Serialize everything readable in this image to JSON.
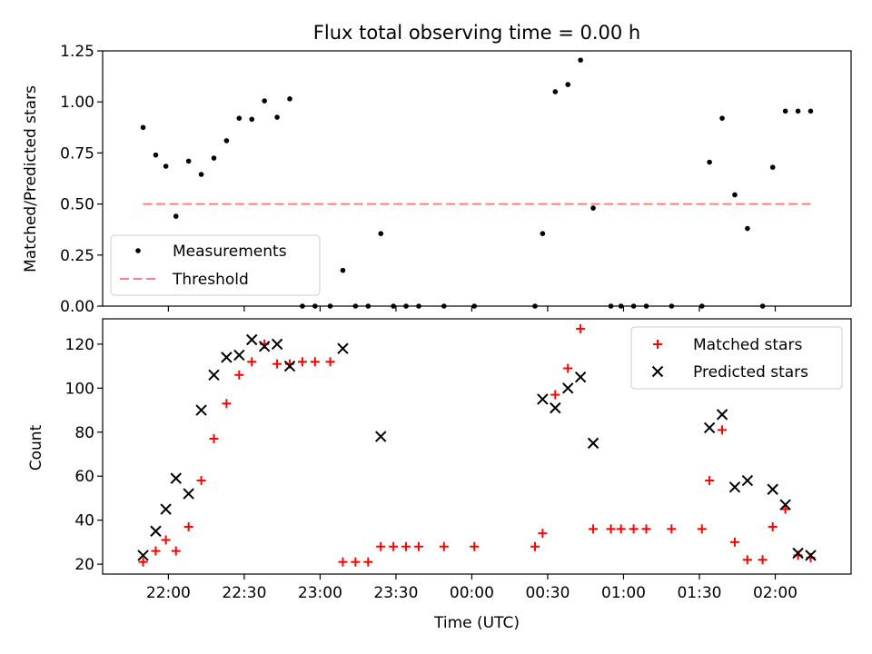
{
  "chart_data": [
    {
      "type": "scatter",
      "title": "Flux total observing time = 0.00 h",
      "xlabel": "",
      "ylabel": "Matched/Predicted stars",
      "ylim": [
        0,
        1.25
      ],
      "yticks": [
        "0.00",
        "0.25",
        "0.50",
        "0.75",
        "1.00",
        "1.25"
      ],
      "legend_position": "lower-left",
      "series": [
        {
          "name": "Measurements",
          "color": "#000000",
          "marker": "dot",
          "points": [
            [
              "21:50",
              0.875
            ],
            [
              "21:55",
              0.74
            ],
            [
              "21:59",
              0.685
            ],
            [
              "22:03",
              0.44
            ],
            [
              "22:08",
              0.71
            ],
            [
              "22:13",
              0.645
            ],
            [
              "22:18",
              0.725
            ],
            [
              "22:23",
              0.81
            ],
            [
              "22:28",
              0.92
            ],
            [
              "22:33",
              0.915
            ],
            [
              "22:38",
              1.005
            ],
            [
              "22:43",
              0.925
            ],
            [
              "22:48",
              1.015
            ],
            [
              "22:53",
              0.0
            ],
            [
              "22:58",
              0.0
            ],
            [
              "23:04",
              0.0
            ],
            [
              "23:09",
              0.175
            ],
            [
              "23:14",
              0.0
            ],
            [
              "23:19",
              0.0
            ],
            [
              "23:24",
              0.355
            ],
            [
              "23:29",
              0.0
            ],
            [
              "23:34",
              0.0
            ],
            [
              "23:39",
              0.0
            ],
            [
              "23:49",
              0.0
            ],
            [
              "24:01",
              0.0
            ],
            [
              "24:25",
              0.0
            ],
            [
              "24:28",
              0.355
            ],
            [
              "24:33",
              1.05
            ],
            [
              "24:38",
              1.085
            ],
            [
              "24:43",
              1.205
            ],
            [
              "24:48",
              0.48
            ],
            [
              "24:55",
              0.0
            ],
            [
              "24:59",
              0.0
            ],
            [
              "25:04",
              0.0
            ],
            [
              "25:09",
              0.0
            ],
            [
              "25:19",
              0.0
            ],
            [
              "25:31",
              0.0
            ],
            [
              "25:34",
              0.705
            ],
            [
              "25:39",
              0.92
            ],
            [
              "25:44",
              0.545
            ],
            [
              "25:49",
              0.38
            ],
            [
              "25:55",
              0.0
            ],
            [
              "25:59",
              0.68
            ],
            [
              "26:04",
              0.955
            ],
            [
              "26:09",
              0.955
            ],
            [
              "26:14",
              0.955
            ]
          ]
        },
        {
          "name": "Threshold",
          "color": "#ff7f7f",
          "style": "dashed",
          "value": 0.5,
          "x_range": [
            "21:50",
            "26:14"
          ]
        }
      ]
    },
    {
      "type": "scatter",
      "title": "",
      "xlabel": "Time (UTC)",
      "ylabel": "Count",
      "ylim": [
        15.5,
        131.5
      ],
      "yticks": [
        "20",
        "40",
        "60",
        "80",
        "100",
        "120"
      ],
      "xticks": [
        "22:00",
        "22:30",
        "23:00",
        "23:30",
        "00:00",
        "00:30",
        "01:00",
        "01:30",
        "02:00"
      ],
      "legend_position": "top-right",
      "series": [
        {
          "name": "Matched stars",
          "color": "#ff0000",
          "marker": "plus",
          "points": [
            [
              "21:50",
              21
            ],
            [
              "21:55",
              26
            ],
            [
              "21:59",
              31
            ],
            [
              "22:03",
              26
            ],
            [
              "22:08",
              37
            ],
            [
              "22:13",
              58
            ],
            [
              "22:18",
              77
            ],
            [
              "22:23",
              93
            ],
            [
              "22:28",
              106
            ],
            [
              "22:33",
              112
            ],
            [
              "22:38",
              120
            ],
            [
              "22:43",
              111
            ],
            [
              "22:48",
              111
            ],
            [
              "22:53",
              112
            ],
            [
              "22:58",
              112
            ],
            [
              "23:04",
              112
            ],
            [
              "23:09",
              21
            ],
            [
              "23:14",
              21
            ],
            [
              "23:19",
              21
            ],
            [
              "23:24",
              28
            ],
            [
              "23:29",
              28
            ],
            [
              "23:34",
              28
            ],
            [
              "23:39",
              28
            ],
            [
              "23:49",
              28
            ],
            [
              "24:01",
              28
            ],
            [
              "24:25",
              28
            ],
            [
              "24:28",
              34
            ],
            [
              "24:33",
              97
            ],
            [
              "24:38",
              109
            ],
            [
              "24:43",
              127
            ],
            [
              "24:48",
              36
            ],
            [
              "24:55",
              36
            ],
            [
              "24:59",
              36
            ],
            [
              "25:04",
              36
            ],
            [
              "25:09",
              36
            ],
            [
              "25:19",
              36
            ],
            [
              "25:31",
              36
            ],
            [
              "25:34",
              58
            ],
            [
              "25:39",
              81
            ],
            [
              "25:44",
              30
            ],
            [
              "25:49",
              22
            ],
            [
              "25:55",
              22
            ],
            [
              "25:59",
              37
            ],
            [
              "26:04",
              45
            ],
            [
              "26:09",
              24
            ],
            [
              "26:14",
              23
            ]
          ]
        },
        {
          "name": "Predicted stars",
          "color": "#000000",
          "marker": "x",
          "points": [
            [
              "21:50",
              24
            ],
            [
              "21:55",
              35
            ],
            [
              "21:59",
              45
            ],
            [
              "22:03",
              59
            ],
            [
              "22:08",
              52
            ],
            [
              "22:13",
              90
            ],
            [
              "22:18",
              106
            ],
            [
              "22:23",
              114
            ],
            [
              "22:28",
              115
            ],
            [
              "22:33",
              122
            ],
            [
              "22:38",
              119
            ],
            [
              "22:43",
              120
            ],
            [
              "22:48",
              110
            ],
            [
              "23:09",
              118
            ],
            [
              "23:24",
              78
            ],
            [
              "24:28",
              95
            ],
            [
              "24:33",
              91
            ],
            [
              "24:38",
              100
            ],
            [
              "24:43",
              105
            ],
            [
              "24:48",
              75
            ],
            [
              "25:34",
              82
            ],
            [
              "25:39",
              88
            ],
            [
              "25:44",
              55
            ],
            [
              "25:49",
              58
            ],
            [
              "25:59",
              54
            ],
            [
              "26:04",
              47
            ],
            [
              "26:09",
              25
            ],
            [
              "26:14",
              24
            ]
          ]
        }
      ]
    }
  ]
}
